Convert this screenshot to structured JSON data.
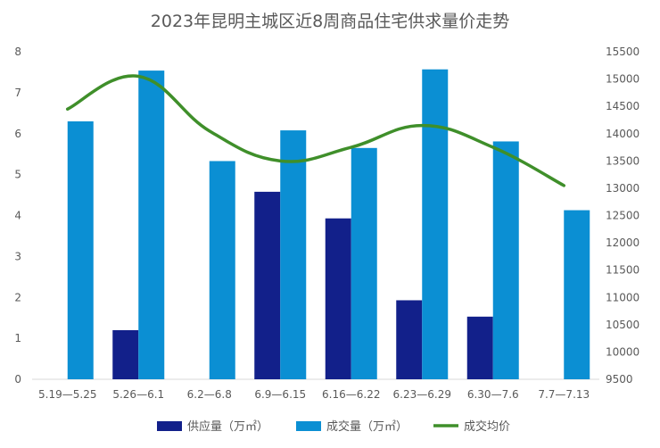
{
  "chart_data": {
    "type": "bar",
    "title": "2023年昆明主城区近8周商品住宅供求量价走势",
    "categories": [
      "5.19—5.25",
      "5.26—6.1",
      "6.2—6.8",
      "6.9—6.15",
      "6.16—6.22",
      "6.23—6.29",
      "6.30—7.6",
      "7.7—7.13"
    ],
    "series": [
      {
        "name": "供应量（万㎡）",
        "type": "bar",
        "axis": "left",
        "color": "#12208a",
        "values": [
          0,
          1.2,
          0,
          4.58,
          3.93,
          1.93,
          1.53,
          0
        ]
      },
      {
        "name": "成交量（万㎡）",
        "type": "bar",
        "axis": "left",
        "color": "#0b8fd3",
        "values": [
          6.3,
          7.54,
          5.33,
          6.08,
          5.65,
          7.57,
          5.81,
          4.13
        ]
      },
      {
        "name": "成交均价",
        "type": "line",
        "axis": "right",
        "color": "#3f8f2a",
        "values": [
          14450,
          15050,
          14050,
          13500,
          13750,
          14150,
          13750,
          13050
        ]
      }
    ],
    "y_left": {
      "min": 0,
      "max": 8,
      "ticks": [
        "0",
        "1",
        "2",
        "3",
        "4",
        "5",
        "6",
        "7",
        "8"
      ]
    },
    "y_right": {
      "min": 9500,
      "max": 15500,
      "ticks": [
        "9500",
        "10000",
        "10500",
        "11000",
        "11500",
        "12000",
        "12500",
        "13000",
        "13500",
        "14000",
        "14500",
        "15000",
        "15500"
      ]
    },
    "legend_position": "bottom",
    "grid": false
  }
}
